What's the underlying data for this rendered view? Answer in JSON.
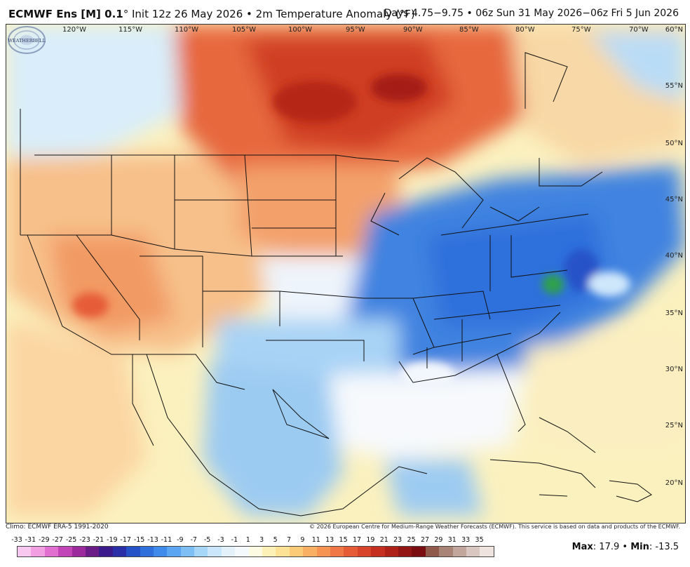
{
  "header": {
    "model": "ECMWF Ens [M] 0.1",
    "degree": "°",
    "init": " Init 12z 26 May 2026",
    "bullet": " • ",
    "field": "2m Temperature Anomaly (°F)",
    "valid": "Days 4.75−9.75 • 06z Sun 31 May 2026−06z Fri 5 Jun 2026"
  },
  "longitude_labels": [
    "120°W",
    "115°W",
    "110°W",
    "105°W",
    "100°W",
    "95°W",
    "90°W",
    "85°W",
    "80°W",
    "75°W",
    "70°W"
  ],
  "latitude_labels": [
    "60°N",
    "55°N",
    "50°N",
    "45°N",
    "40°N",
    "35°N",
    "30°N",
    "25°N",
    "20°N"
  ],
  "logo": {
    "text": "WEATHERBELL",
    "icon": "weatherbell-swirl-logo"
  },
  "footer": {
    "climo": "Climo: ECMWF ERA-5 1991-2020",
    "copyright": "© 2026 European Centre for Medium-Range Weather Forecasts (ECMWF). This service is based on data and products of the ECMWF.",
    "max_label": "Max",
    "max_value": "17.9",
    "min_label": "Min",
    "min_value": "-13.5"
  },
  "colorbar": {
    "ticks": [
      "-33",
      "-31",
      "-29",
      "-27",
      "-25",
      "-23",
      "-21",
      "-19",
      "-17",
      "-15",
      "-13",
      "-11",
      "-9",
      "-7",
      "-5",
      "-3",
      "-1",
      "1",
      "3",
      "5",
      "7",
      "9",
      "11",
      "13",
      "15",
      "17",
      "19",
      "21",
      "23",
      "25",
      "27",
      "29",
      "31",
      "33",
      "35"
    ],
    "colors": [
      "#f9c8f0",
      "#f29ee3",
      "#e06fd0",
      "#c245b8",
      "#9b2a9c",
      "#6a1c87",
      "#3b1a8c",
      "#2a2fa8",
      "#2552c7",
      "#2f6fdc",
      "#3f8bec",
      "#5aa6f2",
      "#7ec0f6",
      "#a6d6f8",
      "#c9e6fa",
      "#e3f1fb",
      "#f4f9fd",
      "#fdfbe2",
      "#fdf1b8",
      "#fde195",
      "#fccb78",
      "#f9b062",
      "#f69454",
      "#f07746",
      "#e65c37",
      "#d8442a",
      "#c52f20",
      "#ad2119",
      "#931514",
      "#7a0d10",
      "#8f5a4a",
      "#a98476",
      "#c2a69c",
      "#d9c6c0",
      "#efe3e0"
    ]
  }
}
